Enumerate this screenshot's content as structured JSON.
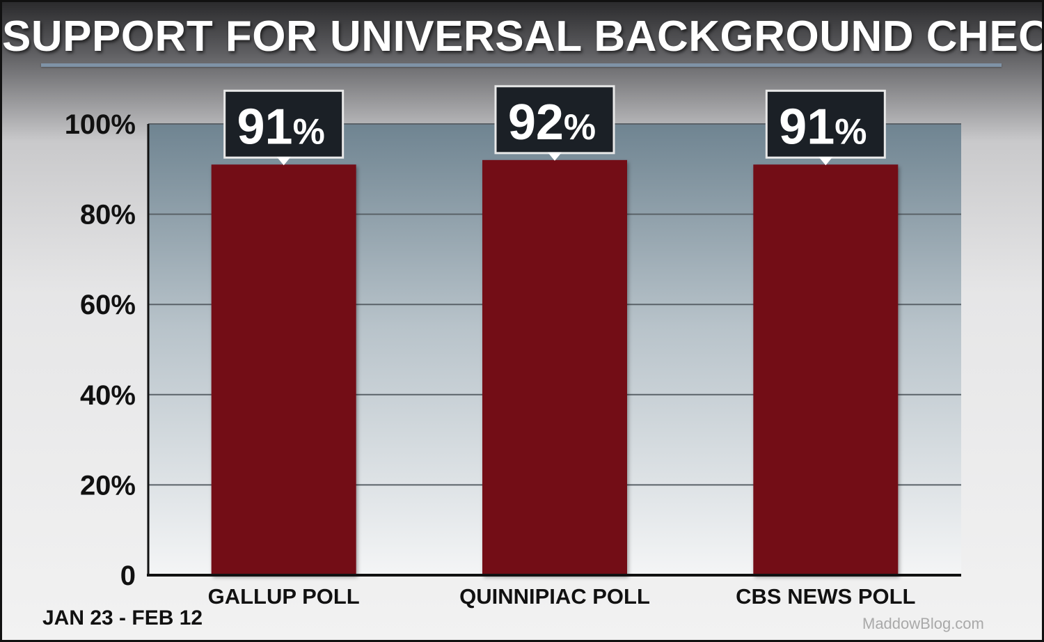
{
  "chart_data": {
    "type": "bar",
    "title": "SUPPORT FOR UNIVERSAL BACKGROUND CHECKS",
    "categories": [
      "GALLUP POLL",
      "QUINNIPIAC POLL",
      "CBS NEWS POLL"
    ],
    "values": [
      91,
      92,
      91
    ],
    "value_labels": [
      "91",
      "92",
      "91"
    ],
    "value_suffix": "%",
    "ytick_labels": [
      "0",
      "20%",
      "40%",
      "60%",
      "80%",
      "100%"
    ],
    "yticks": [
      0,
      20,
      40,
      60,
      80,
      100
    ],
    "ylim": [
      0,
      100
    ],
    "grid": true,
    "legend": "none",
    "bar_color": "#731018",
    "note": "JAN 23 - FEB 12"
  },
  "watermark": "MaddowBlog.com"
}
